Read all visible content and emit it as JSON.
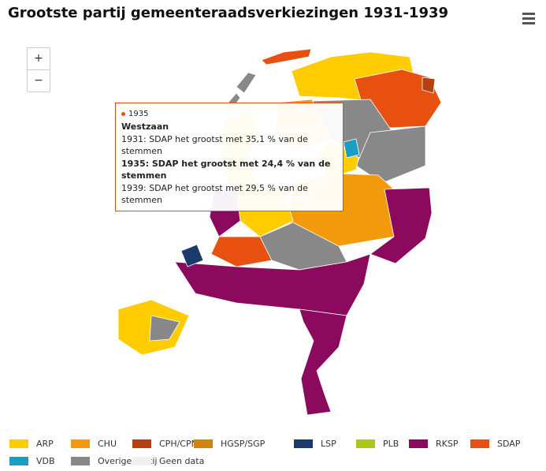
{
  "title": "Grootste partij gemeenteraadsverkiezingen 1931-1939",
  "zoom": {
    "in": "+",
    "out": "−"
  },
  "tooltip": {
    "year": "1935",
    "municipality": "Westzaan",
    "lines": [
      "1931: SDAP het grootst met 35,1 % van de stemmen",
      "1935: SDAP het grootst met 24,4 % van de stemmen",
      "1939: SDAP het grootst met 29,5 % van de stemmen"
    ]
  },
  "legend": [
    {
      "name": "ARP",
      "color": "#ffcc00"
    },
    {
      "name": "CHU",
      "color": "#f39a0c"
    },
    {
      "name": "CPH/CPN",
      "color": "#b5410f"
    },
    {
      "name": "HGSP/SGP",
      "color": "#d4820e"
    },
    {
      "name": "LSP",
      "color": "#1b3a6b"
    },
    {
      "name": "PLB",
      "color": "#a8c81a"
    },
    {
      "name": "RKSP",
      "color": "#8b0a5e"
    },
    {
      "name": "SDAP",
      "color": "#e8500f"
    },
    {
      "name": "VDB",
      "color": "#1a9ec4"
    },
    {
      "name": "Overige partij",
      "color": "#888888"
    },
    {
      "name": "Geen data",
      "color": "#f0f0f0"
    }
  ]
}
